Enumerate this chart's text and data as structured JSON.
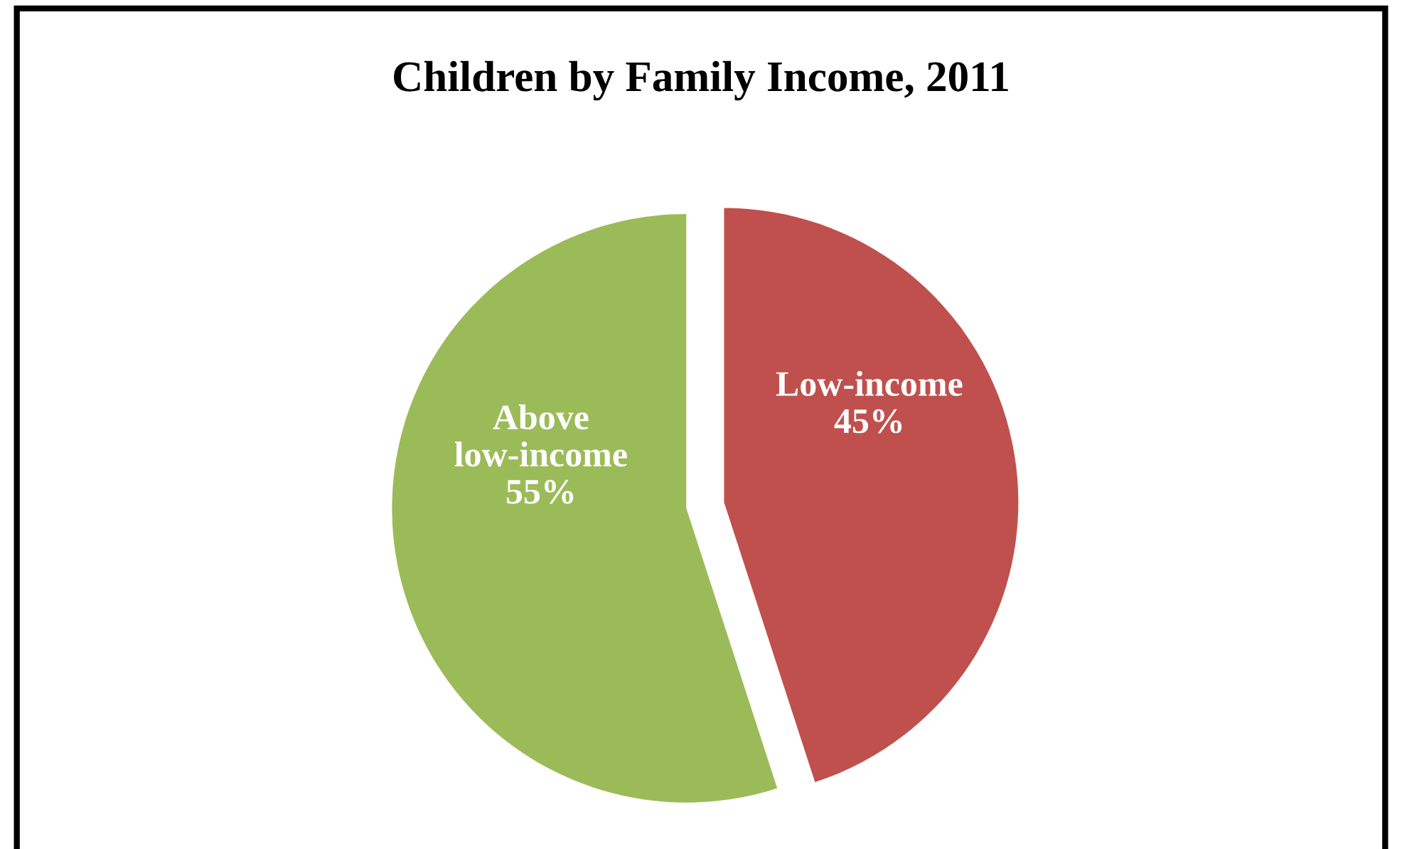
{
  "chart_data": {
    "type": "pie",
    "title": "Children by Family Income, 2011",
    "categories": [
      "Low-income",
      "Above low-income"
    ],
    "values": [
      45,
      55
    ],
    "colors": [
      "#c0504d",
      "#9bbb59"
    ],
    "value_labels": [
      "45%",
      "55%"
    ]
  }
}
